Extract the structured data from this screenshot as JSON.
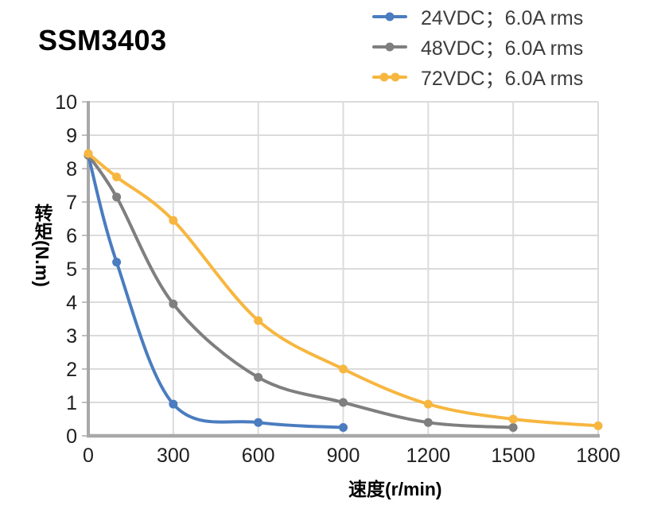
{
  "chart_data": {
    "type": "line",
    "title": "SSM3403",
    "xlabel": "速度(r/min)",
    "ylabel": "转矩(N.m)",
    "xlim": [
      0,
      1800
    ],
    "ylim": [
      0,
      10
    ],
    "x_ticks": [
      0,
      300,
      600,
      900,
      1200,
      1500,
      1800
    ],
    "y_ticks": [
      0,
      1,
      2,
      3,
      4,
      5,
      6,
      7,
      8,
      9,
      10
    ],
    "grid": true,
    "line_style": "smooth",
    "legend_position": "top-right",
    "series": [
      {
        "name": "24VDC；6.0A rms",
        "color": "#4A7CBF",
        "legend_dots": 1,
        "x": [
          0,
          100,
          300,
          600,
          900
        ],
        "y": [
          8.4,
          5.2,
          0.95,
          0.4,
          0.25
        ]
      },
      {
        "name": "48VDC；6.0A rms",
        "color": "#7F7F7F",
        "legend_dots": 1,
        "x": [
          0,
          100,
          300,
          600,
          900,
          1200,
          1500
        ],
        "y": [
          8.4,
          7.15,
          3.95,
          1.75,
          1.0,
          0.4,
          0.25
        ]
      },
      {
        "name": "72VDC；6.0A rms",
        "color": "#F7B63F",
        "legend_dots": 2,
        "x": [
          0,
          100,
          300,
          600,
          900,
          1200,
          1500,
          1800
        ],
        "y": [
          8.45,
          7.75,
          6.45,
          3.45,
          2.0,
          0.95,
          0.5,
          0.3
        ]
      }
    ],
    "colors": {
      "gridline": "#DBDBDB",
      "axis": "#A8A8A8",
      "tick": "#BFBFBF",
      "tick_label": "#1F1F1F",
      "legend_text": "#3D3D3D",
      "title": "#000000"
    }
  }
}
